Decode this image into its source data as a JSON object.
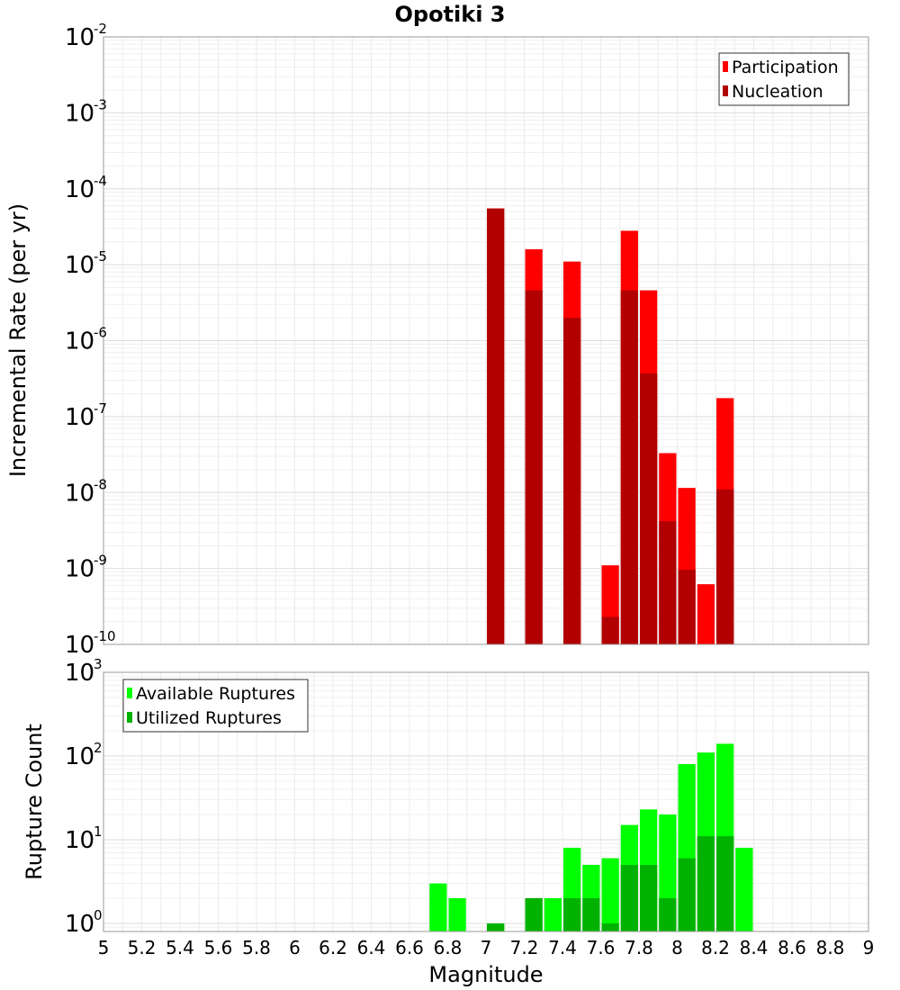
{
  "title": "Opotiki 3",
  "xlabel": "Magnitude",
  "x_ticks": [
    "5",
    "5.2",
    "5.4",
    "5.6",
    "5.8",
    "6",
    "6.2",
    "6.4",
    "6.6",
    "6.8",
    "7",
    "7.2",
    "7.4",
    "7.6",
    "7.8",
    "8",
    "8.2",
    "8.4",
    "8.6",
    "8.8",
    "9"
  ],
  "chart_data": [
    {
      "type": "bar",
      "ylabel": "Incremental Rate (per yr)",
      "yscale": "log",
      "xlim": [
        5,
        9
      ],
      "ylim": [
        1e-10,
        0.01
      ],
      "y_ticks": [
        {
          "base": "10",
          "exp": "-10"
        },
        {
          "base": "10",
          "exp": "-9"
        },
        {
          "base": "10",
          "exp": "-8"
        },
        {
          "base": "10",
          "exp": "-7"
        },
        {
          "base": "10",
          "exp": "-6"
        },
        {
          "base": "10",
          "exp": "-5"
        },
        {
          "base": "10",
          "exp": "-4"
        },
        {
          "base": "10",
          "exp": "-3"
        },
        {
          "base": "10",
          "exp": "-2"
        }
      ],
      "grid": true,
      "legend_position": "top-right",
      "categories": [
        7.05,
        7.25,
        7.45,
        7.65,
        7.75,
        7.85,
        7.95,
        8.05,
        8.15,
        8.25
      ],
      "series": [
        {
          "name": "Participation",
          "color": "#ff0000",
          "values": [
            5.5e-05,
            1.6e-05,
            1.1e-05,
            1.1e-09,
            2.8e-05,
            4.6e-06,
            3.3e-08,
            1.15e-08,
            6.2e-10,
            1.75e-07
          ]
        },
        {
          "name": "Nucleation",
          "color": "#b20000",
          "values": [
            5.5e-05,
            4.6e-06,
            2e-06,
            2.3e-10,
            4.6e-06,
            3.7e-07,
            4.2e-09,
            9.6e-10,
            null,
            1.1e-08
          ]
        }
      ]
    },
    {
      "type": "bar",
      "ylabel": "Rupture Count",
      "yscale": "log",
      "xlim": [
        5,
        9
      ],
      "ylim": [
        0.8,
        1000
      ],
      "y_ticks": [
        {
          "base": "10",
          "exp": "0"
        },
        {
          "base": "10",
          "exp": "1"
        },
        {
          "base": "10",
          "exp": "2"
        },
        {
          "base": "10",
          "exp": "3"
        }
      ],
      "grid": true,
      "legend_position": "top-left",
      "categories": [
        6.75,
        6.85,
        7.05,
        7.25,
        7.35,
        7.45,
        7.55,
        7.65,
        7.75,
        7.85,
        7.95,
        8.05,
        8.15,
        8.25,
        8.35
      ],
      "series": [
        {
          "name": "Available Ruptures",
          "color": "#00ff00",
          "values": [
            3,
            2,
            1,
            2,
            2,
            8,
            5,
            6,
            15,
            23,
            20,
            80,
            110,
            140,
            8
          ]
        },
        {
          "name": "Utilized Ruptures",
          "color": "#00b200",
          "values": [
            null,
            null,
            1,
            2,
            null,
            2,
            2,
            1,
            5,
            5,
            2,
            6,
            11,
            11,
            null
          ]
        }
      ]
    }
  ]
}
